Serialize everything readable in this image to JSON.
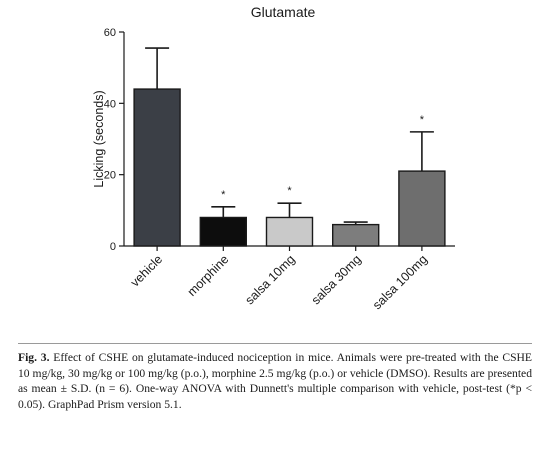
{
  "chart_data": {
    "type": "bar",
    "title": "Glutamate",
    "xlabel": "",
    "ylabel": "Licking (seconds)",
    "ylim": [
      0,
      60
    ],
    "yticks": [
      0,
      20,
      40,
      60
    ],
    "grid": false,
    "categories": [
      "vehicle",
      "morphine",
      "salsa 10mg",
      "salsa 30mg",
      "salsa 100mg"
    ],
    "values": [
      44,
      8,
      8,
      6,
      21
    ],
    "errors": [
      11.5,
      3,
      4,
      0.7,
      11
    ],
    "significance": [
      "",
      "*",
      "*",
      "",
      "*"
    ],
    "colors": [
      "#3b3f46",
      "#0d0d0d",
      "#c9c9c9",
      "#7d7d7d",
      "#6e6e6e"
    ]
  },
  "caption": {
    "label": "Fig. 3.",
    "text": "Effect of CSHE on glutamate-induced nociception in mice. Animals were pre-treated with the CSHE 10 mg/kg, 30 mg/kg or 100 mg/kg (p.o.), morphine 2.5 mg/kg (p.o.) or vehicle (DMSO). Results are presented as mean ± S.D. (n = 6). One-way ANOVA with Dunnett's multiple comparison with vehicle, post-test (*p < 0.05). GraphPad Prism version 5.1."
  }
}
